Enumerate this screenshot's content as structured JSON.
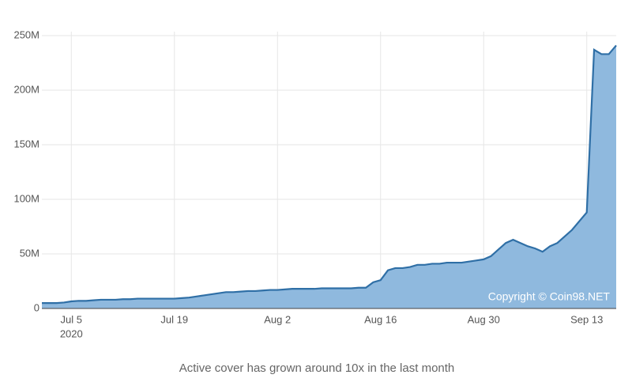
{
  "chart_data": {
    "type": "area",
    "caption": "Active cover has grown around 10x in the last month",
    "watermark": "Copyright © Coin98.NET",
    "color": "#8fb9de",
    "line_color": "#2f6fa6",
    "grid": true,
    "x": [
      "2020-07-01",
      "2020-07-02",
      "2020-07-03",
      "2020-07-04",
      "2020-07-05",
      "2020-07-06",
      "2020-07-07",
      "2020-07-08",
      "2020-07-09",
      "2020-07-10",
      "2020-07-11",
      "2020-07-12",
      "2020-07-13",
      "2020-07-14",
      "2020-07-15",
      "2020-07-16",
      "2020-07-17",
      "2020-07-18",
      "2020-07-19",
      "2020-07-20",
      "2020-07-21",
      "2020-07-22",
      "2020-07-23",
      "2020-07-24",
      "2020-07-25",
      "2020-07-26",
      "2020-07-27",
      "2020-07-28",
      "2020-07-29",
      "2020-07-30",
      "2020-07-31",
      "2020-08-01",
      "2020-08-02",
      "2020-08-03",
      "2020-08-04",
      "2020-08-05",
      "2020-08-06",
      "2020-08-07",
      "2020-08-08",
      "2020-08-09",
      "2020-08-10",
      "2020-08-11",
      "2020-08-12",
      "2020-08-13",
      "2020-08-14",
      "2020-08-15",
      "2020-08-16",
      "2020-08-17",
      "2020-08-18",
      "2020-08-19",
      "2020-08-20",
      "2020-08-21",
      "2020-08-22",
      "2020-08-23",
      "2020-08-24",
      "2020-08-25",
      "2020-08-26",
      "2020-08-27",
      "2020-08-28",
      "2020-08-29",
      "2020-08-30",
      "2020-08-31",
      "2020-09-01",
      "2020-09-02",
      "2020-09-03",
      "2020-09-04",
      "2020-09-05",
      "2020-09-06",
      "2020-09-07",
      "2020-09-08",
      "2020-09-09",
      "2020-09-10",
      "2020-09-11",
      "2020-09-12",
      "2020-09-13",
      "2020-09-14",
      "2020-09-15",
      "2020-09-16",
      "2020-09-17"
    ],
    "values": [
      5000000,
      5000000,
      5000000,
      5500000,
      6500000,
      7000000,
      7000000,
      7500000,
      8000000,
      8000000,
      8000000,
      8500000,
      8500000,
      9000000,
      9000000,
      9000000,
      9000000,
      9000000,
      9000000,
      9500000,
      10000000,
      11000000,
      12000000,
      13000000,
      14000000,
      15000000,
      15000000,
      15500000,
      16000000,
      16000000,
      16500000,
      17000000,
      17000000,
      17500000,
      18000000,
      18000000,
      18000000,
      18000000,
      18500000,
      18500000,
      18500000,
      18500000,
      18500000,
      19000000,
      19000000,
      24000000,
      26000000,
      35000000,
      37000000,
      37000000,
      38000000,
      40000000,
      40000000,
      41000000,
      41000000,
      42000000,
      42000000,
      42000000,
      43000000,
      44000000,
      45000000,
      48000000,
      54000000,
      60000000,
      63000000,
      60000000,
      57000000,
      55000000,
      52000000,
      57000000,
      60000000,
      66000000,
      72000000,
      80000000,
      88000000,
      237000000,
      233000000,
      233000000,
      241000000
    ],
    "ylim": [
      0,
      250000000
    ],
    "yticks": [
      0,
      {
        "value": 50000000,
        "label": "50M"
      },
      {
        "value": 100000000,
        "label": "100M"
      },
      {
        "value": 150000000,
        "label": "150M"
      },
      {
        "value": 200000000,
        "label": "200M"
      },
      {
        "value": 250000000,
        "label": "250M"
      }
    ],
    "xticks": [
      {
        "value": "2020-07-05",
        "label": "Jul 5"
      },
      {
        "value": "2020-07-19",
        "label": "Jul 19"
      },
      {
        "value": "2020-08-02",
        "label": "Aug 2"
      },
      {
        "value": "2020-08-16",
        "label": "Aug 16"
      },
      {
        "value": "2020-08-30",
        "label": "Aug 30"
      },
      {
        "value": "2020-09-13",
        "label": "Sep 13"
      }
    ],
    "xtick_sublabel": "2020"
  }
}
